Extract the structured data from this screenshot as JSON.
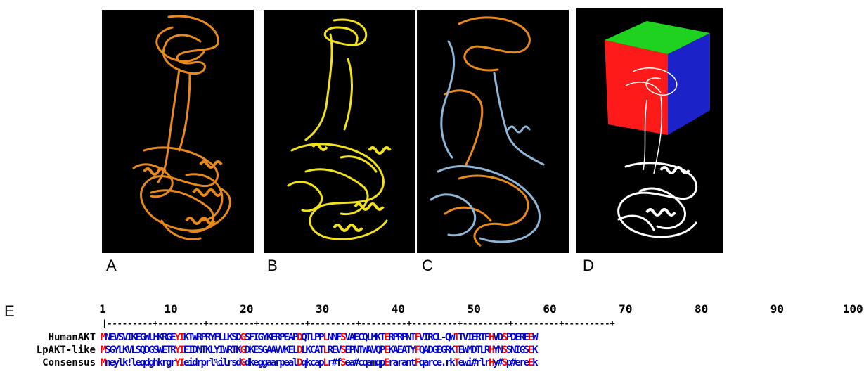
{
  "panels": [
    {
      "label": "A",
      "color": "#e8891c"
    },
    {
      "label": "B",
      "color": "#f2e21a"
    },
    {
      "label": "C",
      "color": "#e8891c",
      "color2": "#8fb6d6"
    },
    {
      "label": "D",
      "color": "#ffffff",
      "cube": [
        "#ff1a1a",
        "#1a22c8",
        "#1fd21f"
      ]
    }
  ],
  "alignment": {
    "label": "E",
    "ruler": [
      "1",
      "10",
      "20",
      "30",
      "40",
      "50",
      "60",
      "70",
      "80",
      "90",
      "100"
    ],
    "ruler_line": "|---------+---------+---------+---------+---------+---------+---------+---------+---------+---------+",
    "rows": [
      {
        "name": "HumanAKT",
        "seq": "MNEVSVIKEGWLHKRGEYIKTWRPRYFLLKSDGSFIGYKERPEAPDQTLPPLNNFSVAECQLMKTERPRPNTFVIRCL-QWTTVIERTFHVDSPDEREEW"
      },
      {
        "name": "LpAKT-like",
        "seq": "MSGYLKVLSQDGSWETRYIEIDNTKLYIWRTKGDKESGAAVVKELDLKCATLREVSEPNTWAVQPEKAEATYFQADGEGRKTEWMDTLRHYNSSNIGSEK"
      },
      {
        "name": "Consensus",
        "seq": "Mneylk!leqdghkrgrYIeidrprl%ilrsdGdkeggaarpealDqkcapLr#fSea#cqamqpErarantFqarce.rkTewi#rlrHy#Sp#ereEk"
      }
    ]
  }
}
